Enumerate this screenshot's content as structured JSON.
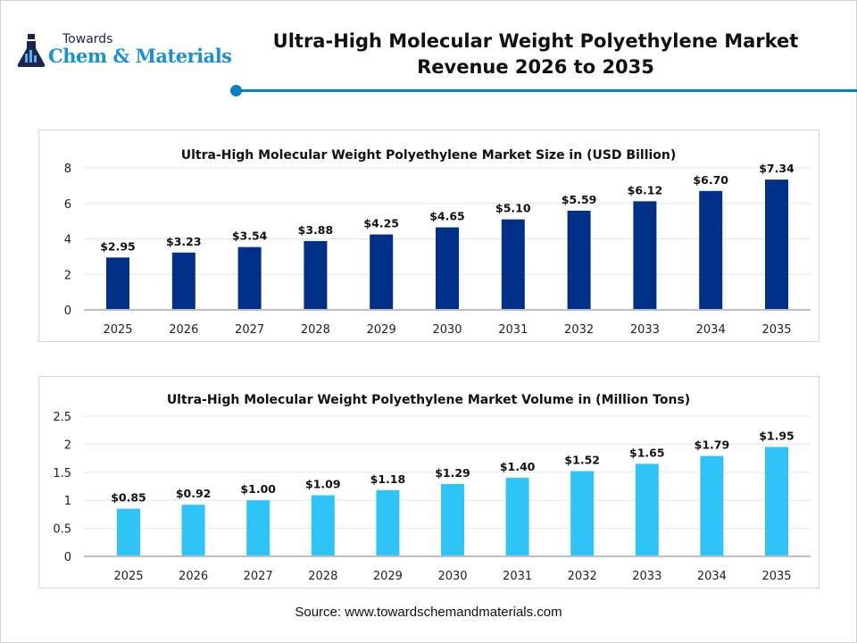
{
  "logo": {
    "small_text": "Towards",
    "big_text": "Chem & Materials",
    "icon": "flask-icon"
  },
  "header": {
    "title_line1": "Ultra-High Molecular Weight Polyethylene Market",
    "title_line2": "Revenue 2026 to 2035",
    "accent_color": "#0b7fc4"
  },
  "chart_data": [
    {
      "type": "bar",
      "title": "Ultra-High Molecular Weight Polyethylene Market Size in (USD Billion)",
      "categories": [
        "2025",
        "2026",
        "2027",
        "2028",
        "2029",
        "2030",
        "2031",
        "2032",
        "2033",
        "2034",
        "2035"
      ],
      "values": [
        2.95,
        3.23,
        3.54,
        3.88,
        4.25,
        4.65,
        5.1,
        5.59,
        6.12,
        6.7,
        7.34
      ],
      "data_labels": [
        "$2.95",
        "$3.23",
        "$3.54",
        "$3.88",
        "$4.25",
        "$4.65",
        "$5.10",
        "$5.59",
        "$6.12",
        "$6.70",
        "$7.34"
      ],
      "ylim": [
        0,
        8
      ],
      "yticks": [
        "0",
        "2",
        "4",
        "6",
        "8"
      ],
      "grid": true,
      "color": "#003087"
    },
    {
      "type": "bar",
      "title": "Ultra-High Molecular Weight Polyethylene Market Volume in (Million Tons)",
      "categories": [
        "2025",
        "2026",
        "2027",
        "2028",
        "2029",
        "2030",
        "2031",
        "2032",
        "2033",
        "2034",
        "2035"
      ],
      "values": [
        0.85,
        0.92,
        1.0,
        1.09,
        1.18,
        1.29,
        1.4,
        1.52,
        1.65,
        1.79,
        1.95
      ],
      "data_labels": [
        "$0.85",
        "$0.92",
        "$1.00",
        "$1.09",
        "$1.18",
        "$1.29",
        "$1.40",
        "$1.52",
        "$1.65",
        "$1.79",
        "$1.95"
      ],
      "ylim": [
        0,
        2.5
      ],
      "yticks": [
        "0",
        "0.5",
        "1",
        "1.5",
        "2",
        "2.5"
      ],
      "grid": true,
      "color": "#2ec4f7"
    }
  ],
  "footer": {
    "source": "Source: www.towardschemandmaterials.com"
  }
}
